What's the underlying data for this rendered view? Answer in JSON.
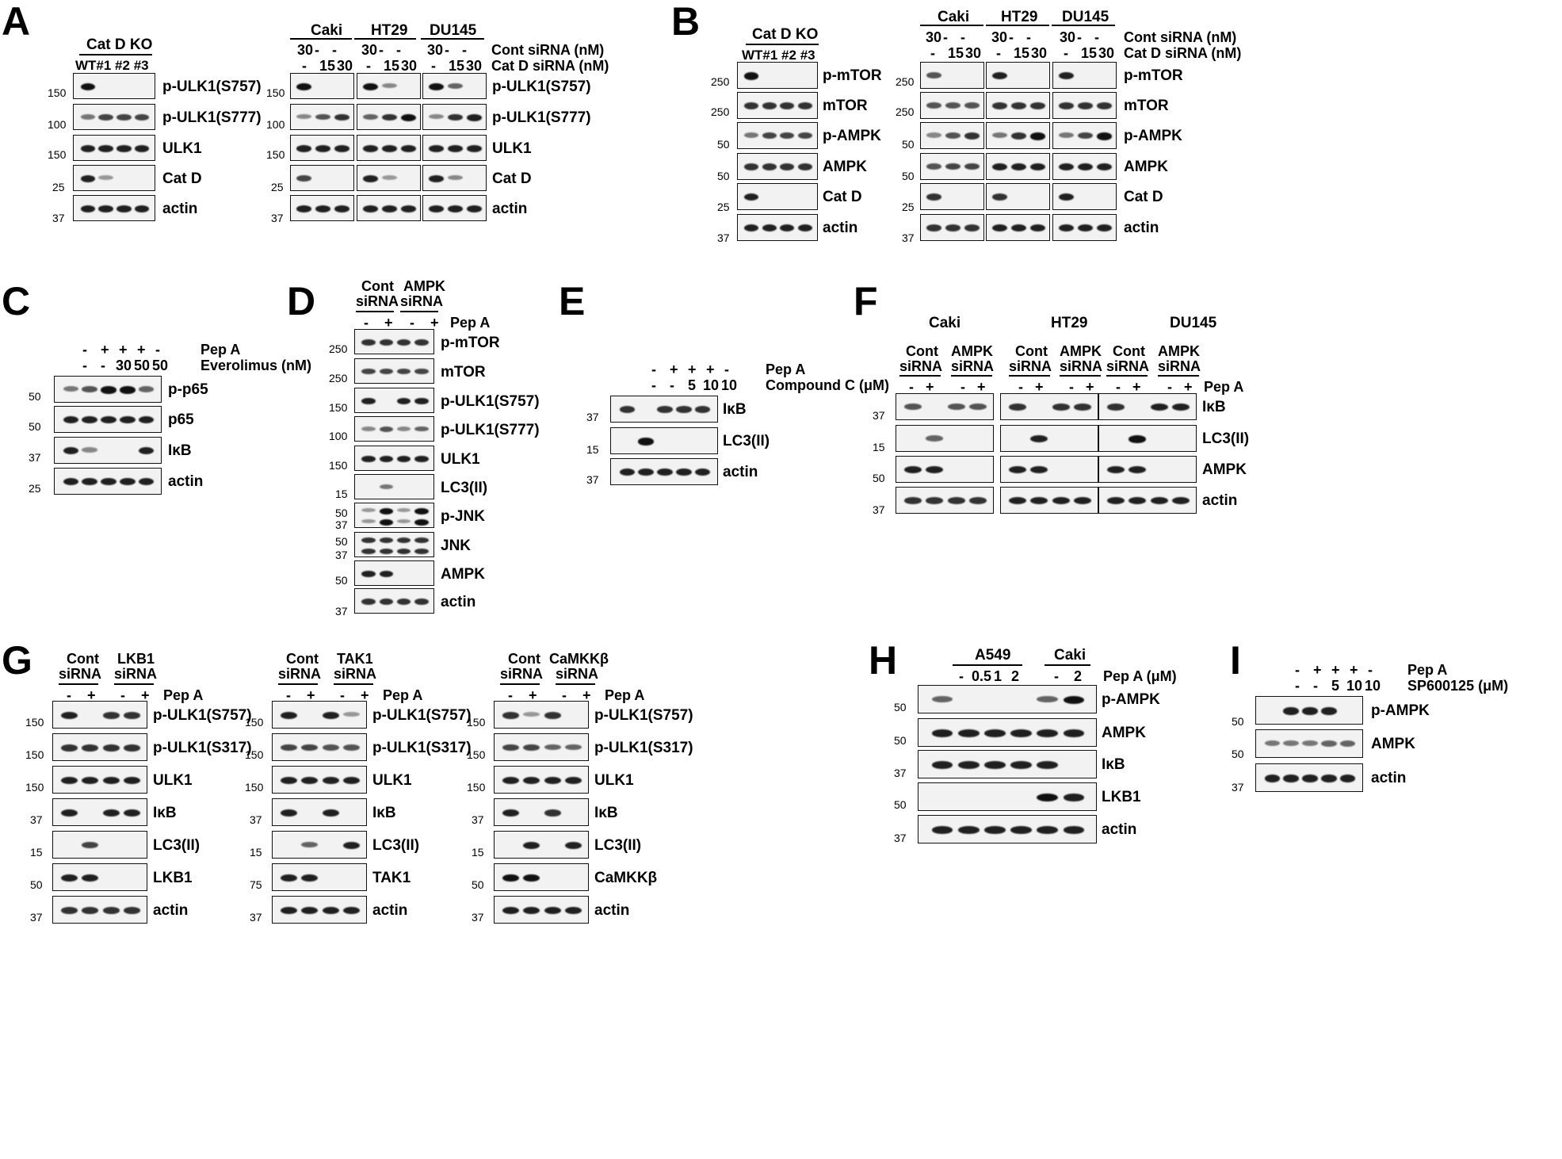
{
  "panels": {
    "A": "A",
    "B": "B",
    "C": "C",
    "D": "D",
    "E": "E",
    "F": "F",
    "G": "G",
    "H": "H",
    "I": "I"
  },
  "text": {
    "catDKO": "Cat D KO",
    "koLanes": "WT#1 #2 #3",
    "caki": "Caki",
    "ht29": "HT29",
    "du145": "DU145",
    "contSiRNA_nM": "Cont siRNA (nM)",
    "catDSiRNA_nM": "Cat D siRNA (nM)",
    "c30": "30",
    "dash": "-",
    "c15": "15",
    "c5": "5",
    "c10": "10",
    "c50": "50",
    "c05": "0.5",
    "c1": "1",
    "c2": "2",
    "plus": "+",
    "pepA": "Pep A",
    "pepA_uM": "Pep A (μM)",
    "everolimus": "Everolimus (nM)",
    "compoundC": "Compound C (μM)",
    "sp600125": "SP600125 (μM)",
    "cont": "Cont",
    "siRNA": "siRNA",
    "ampk": "AMPK",
    "lkb1": "LKB1",
    "tak1": "TAK1",
    "camkkb": "CaMKKβ",
    "a549": "A549",
    "pULK1_757": "p-ULK1(S757)",
    "pULK1_777": "p-ULK1(S777)",
    "pULK1_317": "p-ULK1(S317)",
    "ULK1": "ULK1",
    "CatD": "Cat D",
    "actin": "actin",
    "pmTOR": "p-mTOR",
    "mTOR": "mTOR",
    "pAMPK": "p-AMPK",
    "AMPK": "AMPK",
    "pp65": "p-p65",
    "p65": "p65",
    "IkB": "IκB",
    "LC3II": "LC3(II)",
    "pJNK": "p-JNK",
    "JNK": "JNK",
    "LKB1": "LKB1",
    "TAK1": "TAK1",
    "CaMKKb": "CaMKKβ"
  },
  "mw": {
    "m150": "150",
    "m100": "100",
    "m25": "25",
    "m37": "37",
    "m250": "250",
    "m50": "50",
    "m15": "15",
    "m75": "75"
  }
}
